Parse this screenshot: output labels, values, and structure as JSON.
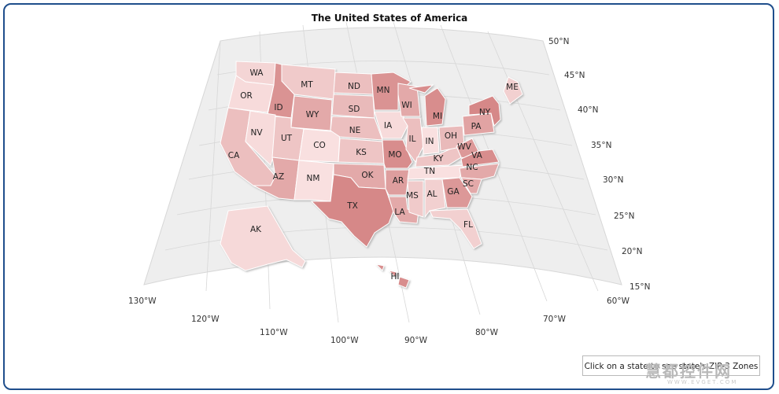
{
  "title": "The United States of America",
  "hint": "Click on a state to see state's ZIP-3 Zones",
  "watermark": {
    "brand": "慧都控件网",
    "site": "WWW.EVGET.COM"
  },
  "colors": {
    "frame": "#1f4e8c",
    "grid_bg": "#eeeeee",
    "grid_line": "#d7d7d7",
    "state_light": "#fbe6e6",
    "state_dark": "#cf7777"
  },
  "latitude_labels": [
    "50°N",
    "45°N",
    "40°N",
    "35°N",
    "30°N",
    "25°N",
    "20°N",
    "15°N"
  ],
  "longitude_labels": [
    "130°W",
    "120°W",
    "110°W",
    "100°W",
    "90°W",
    "80°W",
    "70°W",
    "60°W"
  ],
  "states": [
    {
      "code": "WA",
      "shade": 0.15
    },
    {
      "code": "OR",
      "shade": 0.1
    },
    {
      "code": "CA",
      "shade": 0.35
    },
    {
      "code": "ID",
      "shade": 0.75
    },
    {
      "code": "NV",
      "shade": 0.1
    },
    {
      "code": "MT",
      "shade": 0.25
    },
    {
      "code": "WY",
      "shade": 0.55
    },
    {
      "code": "UT",
      "shade": 0.3
    },
    {
      "code": "AZ",
      "shade": 0.55
    },
    {
      "code": "CO",
      "shade": 0.05
    },
    {
      "code": "NM",
      "shade": 0.05
    },
    {
      "code": "ND",
      "shade": 0.35
    },
    {
      "code": "SD",
      "shade": 0.4
    },
    {
      "code": "NE",
      "shade": 0.35
    },
    {
      "code": "KS",
      "shade": 0.3
    },
    {
      "code": "OK",
      "shade": 0.55
    },
    {
      "code": "TX",
      "shade": 0.85
    },
    {
      "code": "MN",
      "shade": 0.75
    },
    {
      "code": "IA",
      "shade": 0.1
    },
    {
      "code": "MO",
      "shade": 0.8
    },
    {
      "code": "AR",
      "shade": 0.65
    },
    {
      "code": "LA",
      "shade": 0.55
    },
    {
      "code": "WI",
      "shade": 0.55
    },
    {
      "code": "IL",
      "shade": 0.35
    },
    {
      "code": "MS",
      "shade": 0.25
    },
    {
      "code": "MI",
      "shade": 0.8
    },
    {
      "code": "IN",
      "shade": 0.05
    },
    {
      "code": "KY",
      "shade": 0.3
    },
    {
      "code": "TN",
      "shade": 0.05
    },
    {
      "code": "AL",
      "shade": 0.2
    },
    {
      "code": "GA",
      "shade": 0.7
    },
    {
      "code": "FL",
      "shade": 0.2
    },
    {
      "code": "OH",
      "shade": 0.4
    },
    {
      "code": "WV",
      "shade": 0.7
    },
    {
      "code": "VA",
      "shade": 0.8
    },
    {
      "code": "NC",
      "shade": 0.55
    },
    {
      "code": "SC",
      "shade": 0.55
    },
    {
      "code": "PA",
      "shade": 0.6
    },
    {
      "code": "NY",
      "shade": 0.85
    },
    {
      "code": "ME",
      "shade": 0.2
    },
    {
      "code": "AK",
      "shade": 0.12
    },
    {
      "code": "HI",
      "shade": 0.8
    }
  ]
}
